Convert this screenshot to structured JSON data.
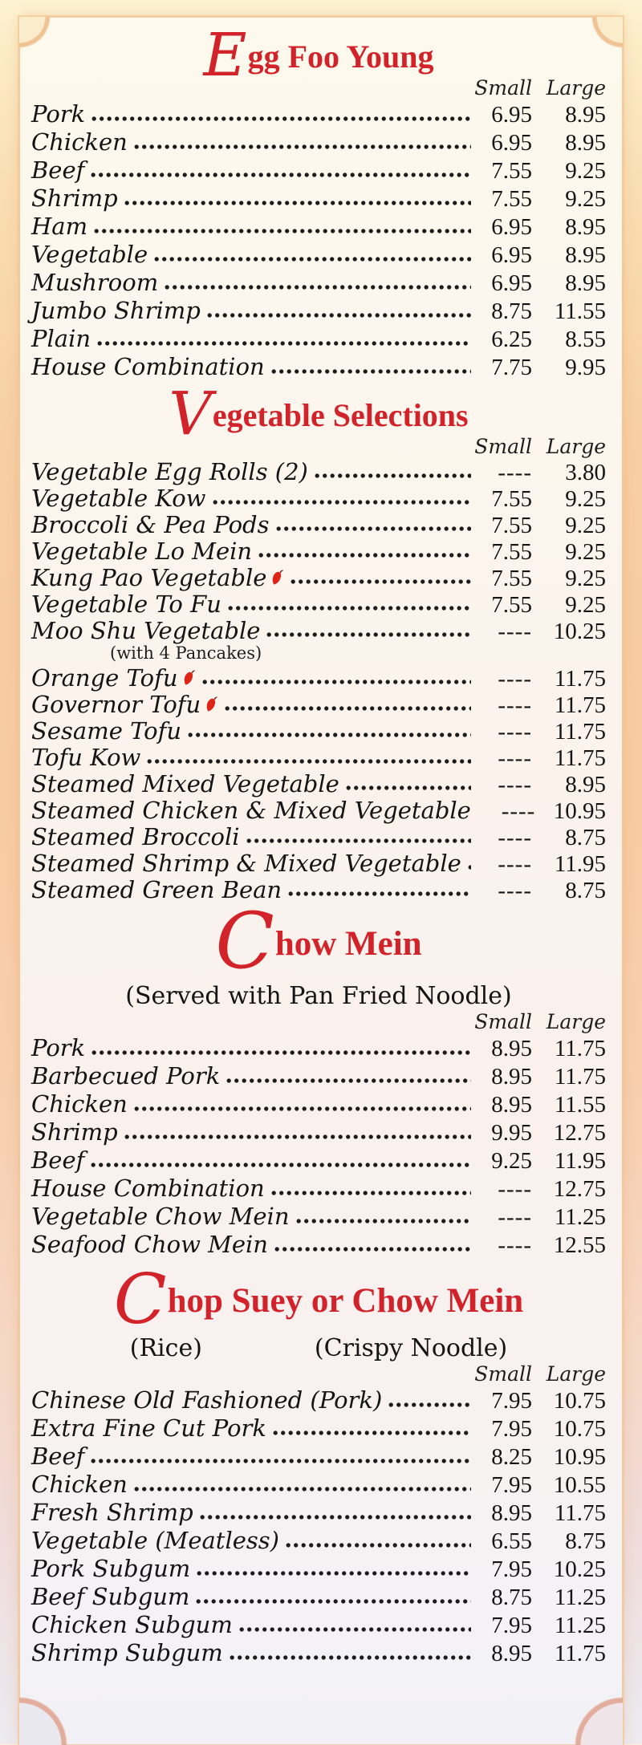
{
  "colors": {
    "heading_red": "#d2232a",
    "text_black": "#141414",
    "spicy_pepper_red": "#de2417",
    "outer_top": "#fdf3d2",
    "outer_middle": "#f8cba2",
    "outer_bottom": "#edeaf0",
    "card_cream": "#fdf9ec"
  },
  "column_headers": {
    "small": "Small",
    "large": "Large"
  },
  "price_dash": "----",
  "menu": {
    "sections": [
      {
        "id": "egg-foo-young",
        "title_initial": "E",
        "title_rest": "gg Foo Young",
        "items": [
          {
            "name": "Pork",
            "small": "6.95",
            "large": "8.95"
          },
          {
            "name": "Chicken",
            "small": "6.95",
            "large": "8.95"
          },
          {
            "name": "Beef",
            "small": "7.55",
            "large": "9.25"
          },
          {
            "name": "Shrimp",
            "small": "7.55",
            "large": "9.25"
          },
          {
            "name": "Ham",
            "small": "6.95",
            "large": "8.95"
          },
          {
            "name": "Vegetable",
            "small": "6.95",
            "large": "8.95"
          },
          {
            "name": "Mushroom",
            "small": "6.95",
            "large": "8.95"
          },
          {
            "name": "Jumbo Shrimp",
            "small": "8.75",
            "large": "11.55"
          },
          {
            "name": "Plain",
            "small": "6.25",
            "large": "8.55"
          },
          {
            "name": "House Combination",
            "small": "7.75",
            "large": "9.95"
          }
        ]
      },
      {
        "id": "vegetable-selections",
        "title_initial": "V",
        "title_rest": "egetable Selections",
        "items": [
          {
            "name": "Vegetable Egg Rolls (2)",
            "small": "----",
            "large": "3.80"
          },
          {
            "name": "Vegetable Kow",
            "small": "7.55",
            "large": "9.25"
          },
          {
            "name": "Broccoli & Pea Pods",
            "small": "7.55",
            "large": "9.25"
          },
          {
            "name": "Vegetable Lo Mein",
            "small": "7.55",
            "large": "9.25"
          },
          {
            "name": "Kung Pao Vegetable",
            "spicy": true,
            "small": "7.55",
            "large": "9.25"
          },
          {
            "name": "Vegetable To Fu",
            "small": "7.55",
            "large": "9.25"
          },
          {
            "name": "Moo Shu Vegetable",
            "small": "----",
            "large": "10.25",
            "note": "(with 4 Pancakes)"
          },
          {
            "name": "Orange Tofu",
            "spicy": true,
            "small": "----",
            "large": "11.75"
          },
          {
            "name": "Governor Tofu",
            "spicy": true,
            "small": "----",
            "large": "11.75"
          },
          {
            "name": "Sesame Tofu",
            "small": "----",
            "large": "11.75"
          },
          {
            "name": "Tofu Kow",
            "small": "----",
            "large": "11.75"
          },
          {
            "name": "Steamed Mixed Vegetable",
            "small": "----",
            "large": "8.95"
          },
          {
            "name": "Steamed Chicken & Mixed Vegetable",
            "small": "----",
            "large": "10.95"
          },
          {
            "name": "Steamed Broccoli",
            "small": "----",
            "large": "8.75"
          },
          {
            "name": "Steamed Shrimp & Mixed Vegetable",
            "small": "----",
            "large": "11.95"
          },
          {
            "name": "Steamed Green Bean",
            "small": "----",
            "large": "8.75"
          }
        ]
      },
      {
        "id": "chow-mein",
        "title_initial": "C",
        "title_rest": "how Mein",
        "subtitle": "(Served with Pan Fried Noodle)",
        "items": [
          {
            "name": "Pork",
            "small": "8.95",
            "large": "11.75"
          },
          {
            "name": "Barbecued Pork",
            "small": "8.95",
            "large": "11.75"
          },
          {
            "name": "Chicken",
            "small": "8.95",
            "large": "11.55"
          },
          {
            "name": "Shrimp",
            "small": "9.95",
            "large": "12.75"
          },
          {
            "name": "Beef",
            "small": "9.25",
            "large": "11.95"
          },
          {
            "name": "House Combination",
            "small": "----",
            "large": "12.75"
          },
          {
            "name": "Vegetable Chow Mein",
            "small": "----",
            "large": "11.25"
          },
          {
            "name": "Seafood Chow Mein",
            "small": "----",
            "large": "12.55"
          }
        ]
      },
      {
        "id": "chop-suey-or-chow-mein",
        "title_initial": "C",
        "title_rest": "hop Suey or Chow Mein",
        "subtitle_parts": [
          "(Rice)",
          "(Crispy Noodle)"
        ],
        "items": [
          {
            "name": "Chinese Old Fashioned (Pork)",
            "small": "7.95",
            "large": "10.75"
          },
          {
            "name": "Extra Fine Cut Pork",
            "small": "7.95",
            "large": "10.75"
          },
          {
            "name": "Beef",
            "small": "8.25",
            "large": "10.95"
          },
          {
            "name": "Chicken",
            "small": "7.95",
            "large": "10.55"
          },
          {
            "name": "Fresh Shrimp",
            "small": "8.95",
            "large": "11.75"
          },
          {
            "name": "Vegetable (Meatless)",
            "small": "6.55",
            "large": "8.75"
          },
          {
            "name": "Pork Subgum",
            "small": "7.95",
            "large": "10.25"
          },
          {
            "name": "Beef Subgum",
            "small": "8.75",
            "large": "11.25"
          },
          {
            "name": "Chicken Subgum",
            "small": "7.95",
            "large": "11.25"
          },
          {
            "name": "Shrimp Subgum",
            "small": "8.95",
            "large": "11.75"
          }
        ]
      }
    ]
  }
}
